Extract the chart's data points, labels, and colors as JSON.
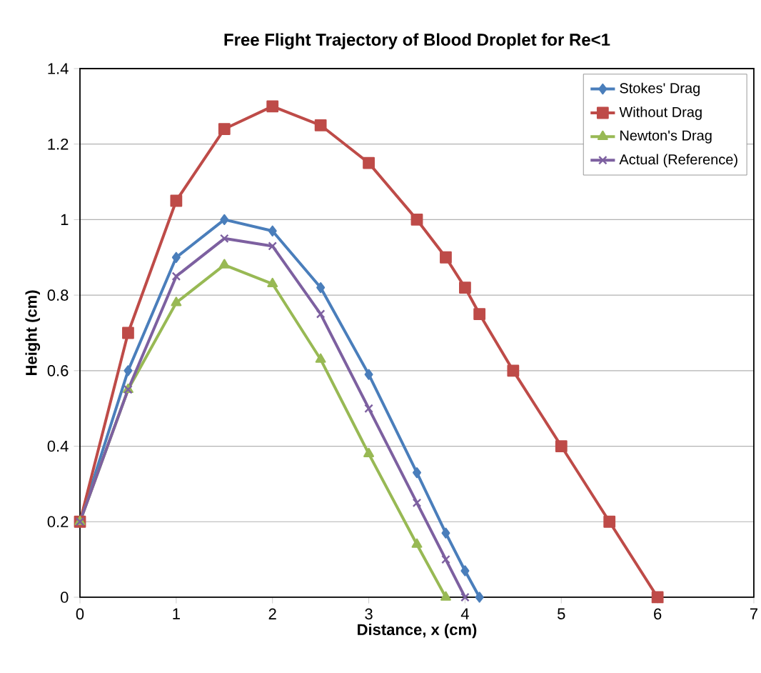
{
  "chart_data": {
    "type": "line",
    "title": "Free Flight Trajectory of Blood Droplet for Re<1",
    "xlabel": "Distance, x (cm)",
    "ylabel": "Height (cm)",
    "xlim": [
      0,
      7
    ],
    "ylim": [
      0,
      1.4
    ],
    "xticks": [
      0,
      1,
      2,
      3,
      4,
      5,
      6,
      7
    ],
    "yticks": [
      0,
      0.2,
      0.4,
      0.6,
      0.8,
      1,
      1.2,
      1.4
    ],
    "grid": "y",
    "legend": "top right",
    "series": [
      {
        "name": "Stokes' Drag",
        "color": "#4a7ebb",
        "marker": "diamond",
        "x": [
          0,
          0.5,
          1,
          1.5,
          2,
          2.5,
          3,
          3.5,
          3.8,
          4,
          4.15
        ],
        "values": [
          0.2,
          0.6,
          0.9,
          1.0,
          0.97,
          0.82,
          0.59,
          0.33,
          0.17,
          0.07,
          0
        ]
      },
      {
        "name": "Without Drag",
        "color": "#be4b48",
        "marker": "square",
        "x": [
          0,
          0.5,
          1,
          1.5,
          2,
          2.5,
          3,
          3.5,
          3.8,
          4,
          4.15,
          4.5,
          5,
          5.5,
          6
        ],
        "values": [
          0.2,
          0.7,
          1.05,
          1.24,
          1.3,
          1.25,
          1.15,
          1.0,
          0.9,
          0.82,
          0.75,
          0.6,
          0.4,
          0.2,
          0
        ]
      },
      {
        "name": "Newton's Drag",
        "color": "#98b954",
        "marker": "triangle",
        "x": [
          0,
          0.5,
          1,
          1.5,
          2,
          2.5,
          3,
          3.5,
          3.8
        ],
        "values": [
          0.2,
          0.55,
          0.78,
          0.88,
          0.83,
          0.63,
          0.38,
          0.14,
          0
        ]
      },
      {
        "name": "Actual (Reference)",
        "color": "#7d60a0",
        "marker": "cross",
        "x": [
          0,
          0.5,
          1,
          1.5,
          2,
          2.5,
          3,
          3.5,
          3.8,
          4
        ],
        "values": [
          0.2,
          0.55,
          0.85,
          0.95,
          0.93,
          0.75,
          0.5,
          0.25,
          0.1,
          0
        ]
      }
    ]
  }
}
